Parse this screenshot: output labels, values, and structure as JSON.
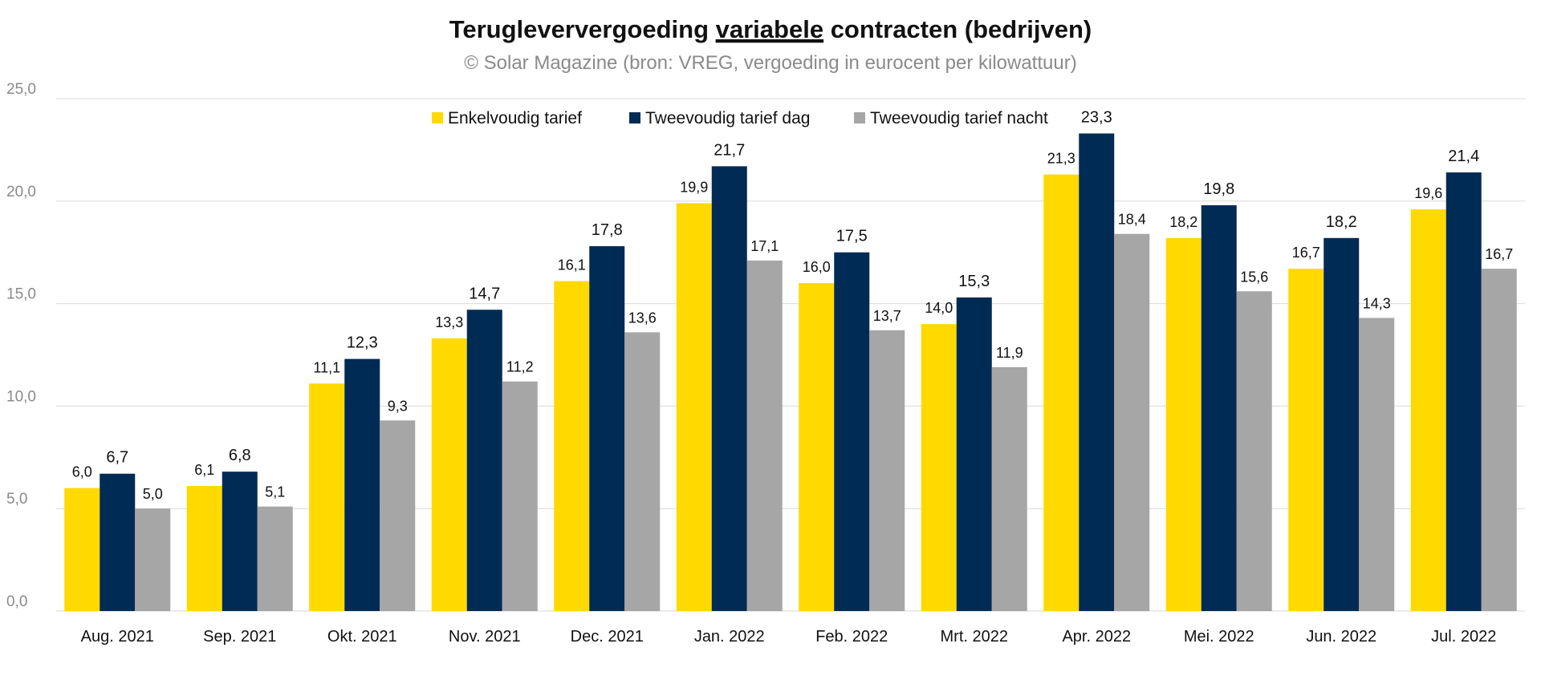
{
  "chart_data": {
    "type": "bar",
    "title_parts": [
      "Terugleververgoeding ",
      "variabele",
      " contracten (bedrijven)"
    ],
    "subtitle": "© Solar Magazine (bron: VREG, vergoeding in eurocent per kilowattuur)",
    "xlabel": "",
    "ylabel": "",
    "ylim": [
      0,
      25
    ],
    "yticks": [
      "0,0",
      "5,0",
      "10,0",
      "15,0",
      "20,0",
      "25,0"
    ],
    "grid": true,
    "legend_position": "top",
    "categories": [
      "Aug. 2021",
      "Sep. 2021",
      "Okt. 2021",
      "Nov. 2021",
      "Dec. 2021",
      "Jan. 2022",
      "Feb. 2022",
      "Mrt. 2022",
      "Apr. 2022",
      "Mei. 2022",
      "Jun. 2022",
      "Jul. 2022"
    ],
    "series": [
      {
        "name": "Enkelvoudig tarief",
        "color": "#FFD900",
        "values": [
          6.0,
          6.1,
          11.1,
          13.3,
          16.1,
          19.9,
          16.0,
          14.0,
          21.3,
          18.2,
          16.7,
          19.6
        ],
        "labels": [
          "6,0",
          "6,1",
          "11,1",
          "13,3",
          "16,1",
          "19,9",
          "16,0",
          "14,0",
          "21,3",
          "18,2",
          "16,7",
          "19,6"
        ]
      },
      {
        "name": "Tweevoudig tarief dag",
        "color": "#002B55",
        "values": [
          6.7,
          6.8,
          12.3,
          14.7,
          17.8,
          21.7,
          17.5,
          15.3,
          23.3,
          19.8,
          18.2,
          21.4
        ],
        "labels": [
          "6,7",
          "6,8",
          "12,3",
          "14,7",
          "17,8",
          "21,7",
          "17,5",
          "15,3",
          "23,3",
          "19,8",
          "18,2",
          "21,4"
        ]
      },
      {
        "name": "Tweevoudig tarief nacht",
        "color": "#A6A6A6",
        "values": [
          5.0,
          5.1,
          9.3,
          11.2,
          13.6,
          17.1,
          13.7,
          11.9,
          18.4,
          15.6,
          14.3,
          16.7
        ],
        "labels": [
          "5,0",
          "5,1",
          "9,3",
          "11,2",
          "13,6",
          "17,1",
          "13,7",
          "11,9",
          "18,4",
          "15,6",
          "14,3",
          "16,7"
        ]
      }
    ]
  }
}
